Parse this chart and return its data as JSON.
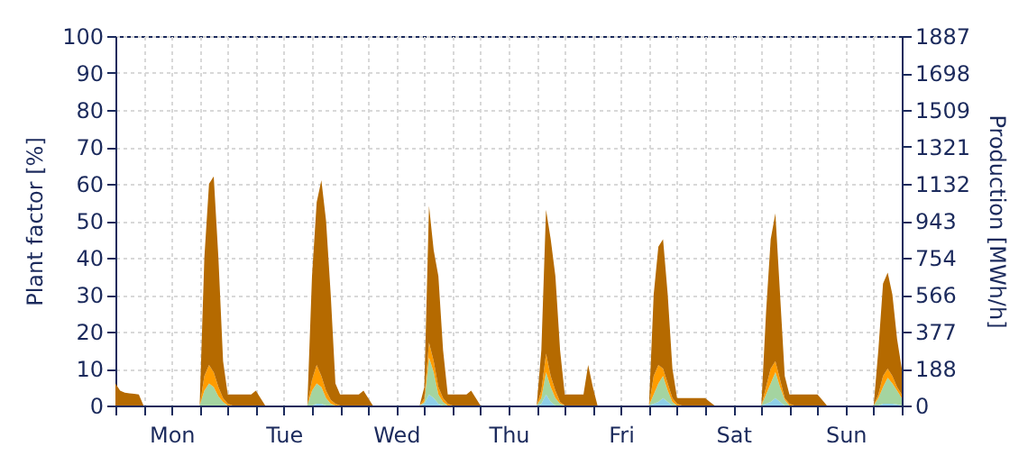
{
  "chart_data": {
    "type": "area",
    "stacked": true,
    "ylabel": "Plant factor [%]",
    "y2label": "Production [MWh/h]",
    "categories": [
      null,
      null,
      null,
      null,
      null,
      null,
      null,
      null,
      null,
      null,
      null,
      null,
      "Mon",
      null,
      null,
      null,
      null,
      null,
      null,
      null,
      null,
      null,
      null,
      null,
      null,
      null,
      null,
      null,
      null,
      null,
      null,
      null,
      null,
      null,
      null,
      null,
      "Tue",
      null,
      null,
      null,
      null,
      null,
      null,
      null,
      null,
      null,
      null,
      null,
      null,
      null,
      null,
      null,
      null,
      null,
      null,
      null,
      null,
      null,
      null,
      null,
      "Wed",
      null,
      null,
      null,
      null,
      null,
      null,
      null,
      null,
      null,
      null,
      null,
      null,
      null,
      null,
      null,
      null,
      null,
      null,
      null,
      null,
      null,
      null,
      null,
      "Thu",
      null,
      null,
      null,
      null,
      null,
      null,
      null,
      null,
      null,
      null,
      null,
      null,
      null,
      null,
      null,
      null,
      null,
      null,
      null,
      null,
      null,
      null,
      null,
      "Fri",
      null,
      null,
      null,
      null,
      null,
      null,
      null,
      null,
      null,
      null,
      null,
      null,
      null,
      null,
      null,
      null,
      null,
      null,
      null,
      null,
      null,
      null,
      null,
      "Sat",
      null,
      null,
      null,
      null,
      null,
      null,
      null,
      null,
      null,
      null,
      null,
      null,
      null,
      null,
      null,
      null,
      null,
      null,
      null,
      null,
      null,
      null,
      null,
      "Sun",
      null,
      null,
      null,
      null,
      null,
      null,
      null,
      null,
      null,
      null,
      null,
      null
    ],
    "series": [
      {
        "color": "#8ecfe8",
        "values": [
          0,
          0,
          0,
          0,
          0,
          0,
          0,
          0,
          0,
          0,
          0,
          0,
          0,
          0,
          0,
          0,
          0,
          0,
          0,
          0,
          0,
          0,
          0,
          0,
          0,
          0,
          0,
          0,
          0,
          0,
          0,
          0,
          0,
          0,
          0,
          0,
          0,
          0,
          0,
          0,
          0,
          0,
          0,
          0.5,
          0.5,
          0,
          0,
          0,
          0,
          0,
          0,
          0,
          0,
          0,
          0,
          0,
          0,
          0,
          0,
          0,
          0,
          0,
          0,
          0,
          0,
          0,
          0.5,
          3,
          2,
          0.5,
          0,
          0,
          0,
          0,
          0,
          0,
          0,
          0,
          0,
          0,
          0,
          0,
          0,
          0,
          0,
          0,
          0,
          0,
          0,
          0,
          0,
          0.5,
          3,
          1,
          0,
          0,
          0,
          0,
          0,
          0,
          0,
          0,
          0,
          0,
          0,
          0,
          0,
          0,
          0,
          0,
          0,
          0,
          0,
          0,
          0,
          0.5,
          1,
          2,
          1,
          0,
          0,
          0,
          0,
          0,
          0,
          0,
          0,
          0,
          0,
          0,
          0,
          0,
          0,
          0,
          0,
          0,
          0,
          0,
          0,
          0.5,
          1,
          2,
          1,
          0,
          0,
          0,
          0,
          0,
          0,
          0,
          0,
          0,
          0,
          0,
          0,
          0,
          0,
          0,
          0,
          0,
          0,
          0,
          0,
          0,
          0.5,
          0.5,
          0.5,
          0.3,
          0
        ]
      },
      {
        "color": "#a4d4a0",
        "values": [
          0,
          0,
          0,
          0,
          0,
          0,
          0,
          0,
          0,
          0,
          0,
          0,
          0,
          0,
          0,
          0,
          0,
          0,
          0,
          4,
          6,
          5,
          2.5,
          1,
          0,
          0,
          0,
          0,
          0,
          0,
          0,
          0,
          0,
          0,
          0,
          0,
          0,
          0,
          0,
          0,
          0,
          0,
          4,
          5.5,
          4.5,
          2,
          0.5,
          0,
          0,
          0,
          0,
          0,
          0,
          0,
          0,
          0,
          0,
          0,
          0,
          0,
          0,
          0,
          0,
          0,
          0,
          0,
          0.5,
          10,
          7,
          2.5,
          1,
          0,
          0,
          0,
          0,
          0,
          0,
          0,
          0,
          0,
          0,
          0,
          0,
          0,
          0,
          0,
          0,
          0,
          0,
          0,
          0,
          1.5,
          6,
          4,
          2,
          0.5,
          0,
          0,
          0,
          0,
          0,
          0,
          0,
          0,
          0,
          0,
          0,
          0,
          0,
          0,
          0,
          0,
          0,
          0,
          0,
          2.5,
          5,
          6,
          3,
          1,
          0,
          0,
          0,
          0,
          0,
          0,
          0,
          0,
          0,
          0,
          0,
          0,
          0,
          0,
          0,
          0,
          0,
          0,
          0,
          2.5,
          5,
          7,
          4,
          1.5,
          0,
          0,
          0,
          0,
          0,
          0,
          0,
          0,
          0,
          0,
          0,
          0,
          0,
          0,
          0,
          0,
          0,
          0,
          0,
          2,
          4.5,
          7,
          5.5,
          3.7,
          2
        ]
      },
      {
        "color": "#ff9c00",
        "values": [
          0,
          0,
          0,
          0,
          0,
          0,
          0,
          0,
          0,
          0,
          0,
          0,
          0,
          0,
          0,
          0,
          0,
          0,
          0,
          4,
          5,
          4,
          2.5,
          1,
          0.5,
          0,
          0,
          0,
          0,
          0,
          0,
          0,
          0,
          0,
          0,
          0,
          0,
          0,
          0,
          0,
          0,
          0,
          3,
          5,
          3,
          2,
          1,
          0.5,
          0,
          0,
          0,
          0,
          0,
          0,
          0,
          0,
          0,
          0,
          0,
          0,
          0,
          0,
          0,
          0,
          0,
          0,
          1,
          4,
          3,
          2,
          1,
          0.5,
          0,
          0,
          0,
          0,
          0,
          0,
          0,
          0,
          0,
          0,
          0,
          0,
          0,
          0,
          0,
          0,
          0,
          0,
          0,
          2,
          5,
          3,
          2,
          0.5,
          0,
          0,
          0,
          0,
          0,
          0,
          0,
          0,
          0,
          0,
          0,
          0,
          0,
          0,
          0,
          0,
          0,
          0,
          0,
          5,
          5,
          2,
          2,
          1,
          0.5,
          0,
          0,
          0,
          0,
          0,
          0,
          0,
          0,
          0,
          0,
          0,
          0,
          0,
          0,
          0,
          0,
          0,
          0,
          2,
          4,
          3,
          2,
          0.5,
          0.5,
          0,
          0,
          0,
          0,
          0,
          0,
          0,
          0,
          0,
          0,
          0,
          0,
          0,
          0,
          0,
          0,
          0,
          0,
          1,
          3,
          2.5,
          2,
          1,
          1
        ]
      },
      {
        "color": "#b56a00",
        "values": [
          6,
          4,
          3.5,
          3.3,
          3.2,
          3,
          0,
          0,
          0,
          0,
          0,
          0,
          0,
          0,
          0,
          0,
          0,
          0,
          0,
          32,
          49,
          53,
          35,
          10,
          2.5,
          3,
          3,
          3,
          3,
          3,
          4,
          2,
          0,
          0,
          0,
          0,
          0,
          0,
          0,
          0,
          0,
          0,
          28,
          44,
          53,
          46,
          28.5,
          5.5,
          3,
          3,
          3,
          3,
          3,
          4,
          2,
          0,
          0,
          0,
          0,
          0,
          0,
          0,
          0,
          0,
          0,
          0,
          3,
          37,
          30,
          30,
          13,
          2.5,
          3,
          3,
          3,
          3,
          4,
          2,
          0,
          0,
          0,
          0,
          0,
          0,
          0,
          0,
          0,
          0,
          0,
          0,
          0,
          11,
          39,
          37,
          31,
          14,
          3,
          3,
          3,
          3,
          3,
          11,
          5,
          0,
          0,
          0,
          0,
          0,
          0,
          0,
          0,
          0,
          0,
          0,
          0,
          22,
          32,
          35,
          24,
          8,
          1.5,
          2,
          2,
          2,
          2,
          2,
          2,
          1,
          0,
          0,
          0,
          0,
          0,
          0,
          0,
          0,
          0,
          0,
          0,
          20,
          35,
          40,
          23,
          6,
          2.5,
          3,
          3,
          3,
          3,
          3,
          3,
          1.5,
          0,
          0,
          0,
          0,
          0,
          0,
          0,
          0,
          0,
          0,
          0,
          12,
          25,
          26,
          22,
          13,
          7
        ]
      }
    ],
    "ylim": [
      0,
      100
    ],
    "yticks": [
      0,
      10,
      20,
      30,
      40,
      50,
      60,
      70,
      80,
      90,
      100
    ],
    "y2lim": [
      0,
      1887
    ],
    "y2ticks": [
      0,
      188,
      377,
      566,
      754,
      943,
      1132,
      1321,
      1509,
      1698,
      1887
    ],
    "grid": true,
    "legend": false
  }
}
